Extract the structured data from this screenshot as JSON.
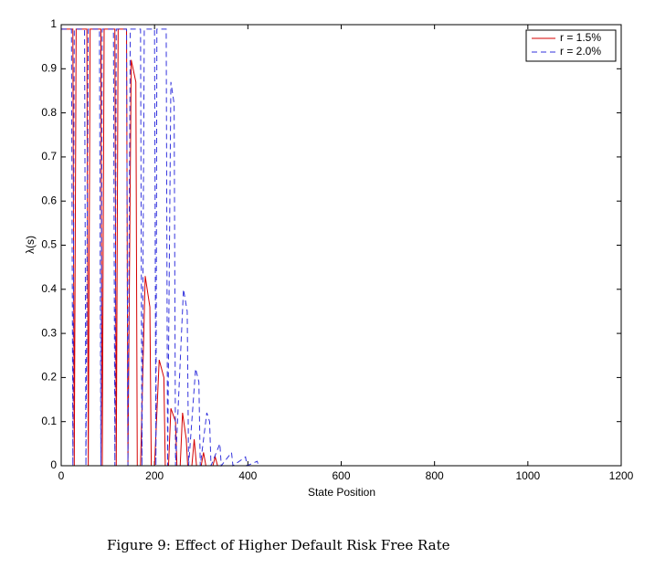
{
  "chart_data": {
    "type": "line",
    "xlabel": "State Position",
    "ylabel": "λ(s)",
    "caption": "Figure 9: Effect of Higher Default Risk Free Rate",
    "xlim": [
      0,
      1200
    ],
    "ylim": [
      0,
      1
    ],
    "xticks": [
      0,
      200,
      400,
      600,
      800,
      1000,
      1200
    ],
    "yticks": [
      0,
      0.1,
      0.2,
      0.3,
      0.4,
      0.5,
      0.6,
      0.7,
      0.8,
      0.9,
      1
    ],
    "grid": false,
    "legend": "upper right",
    "series": [
      {
        "name": "r = 1.5%",
        "color": "#d40000",
        "dash": false,
        "x": [
          0,
          25,
          28,
          32,
          55,
          58,
          62,
          85,
          88,
          92,
          115,
          118,
          122,
          140,
          143,
          150,
          160,
          163,
          170,
          180,
          190,
          193,
          200,
          210,
          220,
          223,
          230,
          235,
          245,
          248,
          255,
          260,
          268,
          271,
          280,
          285,
          290,
          300,
          305,
          310,
          325,
          330,
          335,
          400,
          1200
        ],
        "values": [
          0.99,
          0.99,
          0,
          0.99,
          0.99,
          0,
          0.99,
          0.99,
          0,
          0.99,
          0.99,
          0,
          0.99,
          0.99,
          0,
          0.92,
          0.87,
          0,
          0,
          0.43,
          0.36,
          0,
          0,
          0.24,
          0.2,
          0,
          0,
          0.13,
          0.1,
          0,
          0,
          0.12,
          0.06,
          0,
          0,
          0.06,
          0,
          0,
          0.03,
          0,
          0,
          0.02,
          0,
          0,
          0
        ]
      },
      {
        "name": "r = 2.0%",
        "color": "#3333dd",
        "dash": true,
        "x": [
          0,
          22,
          25,
          28,
          50,
          53,
          58,
          82,
          85,
          88,
          112,
          115,
          118,
          140,
          143,
          148,
          170,
          173,
          178,
          200,
          203,
          205,
          225,
          228,
          235,
          242,
          245,
          262,
          270,
          273,
          288,
          295,
          298,
          312,
          318,
          321,
          340,
          343,
          365,
          368,
          395,
          398,
          420,
          423,
          1200
        ],
        "values": [
          0.99,
          0.99,
          0,
          0.99,
          0.99,
          0,
          0.99,
          0.99,
          0,
          0.99,
          0.99,
          0,
          0.99,
          0.99,
          0,
          0.99,
          0.99,
          0,
          0.99,
          0.99,
          0,
          0.99,
          0.99,
          0,
          0.87,
          0.82,
          0,
          0.4,
          0.35,
          0,
          0.22,
          0.19,
          0,
          0.12,
          0.1,
          0,
          0.05,
          0,
          0.03,
          0,
          0.02,
          0,
          0.01,
          0,
          0
        ]
      }
    ]
  }
}
